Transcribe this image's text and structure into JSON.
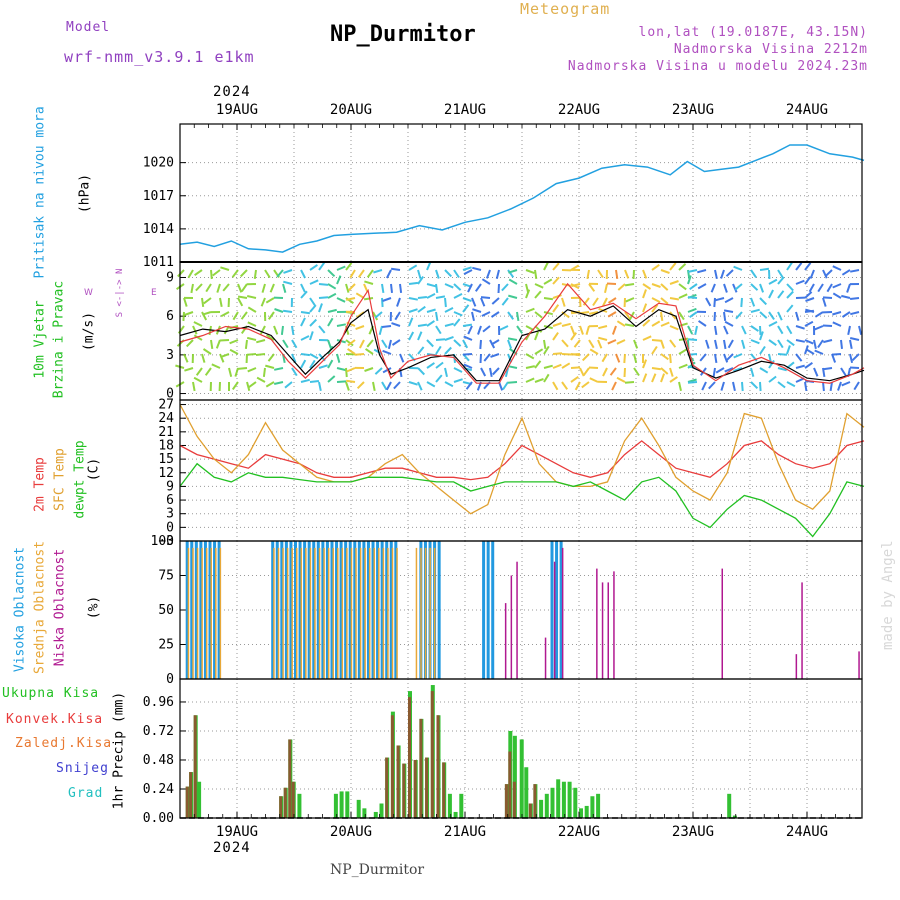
{
  "header": {
    "model_label": "Model",
    "model_name": "wrf-nmm_v3.9.1 e1km",
    "station": "NP_Durmitor",
    "meteogram": "Meteogram",
    "lonlat": "lon,lat (19.0187E, 43.15N)",
    "altitude": "Nadmorska Visina 2212m",
    "model_altitude": "Nadmorska Visina u modelu 2024.23m",
    "year_top": "2024",
    "year_bottom": "2024",
    "footer": "NP_Durmitor",
    "credit": "made by Angel"
  },
  "colors": {
    "pressure": "#22a0e0",
    "temp2m": "#e83c3c",
    "sfc": "#e0a030",
    "dewp": "#22c022",
    "high": "#2299e0",
    "mid": "#e8a838",
    "low": "#b01890",
    "precip_total": "#33c033",
    "precip_conv": "#b03030"
  },
  "dates": [
    "19AUG",
    "20AUG",
    "21AUG",
    "22AUG",
    "23AUG",
    "24AUG"
  ],
  "legends": {
    "pressure": [
      "Pritisak na nivou mora",
      "(hPa)"
    ],
    "wind": [
      "10m Vjetar",
      "Brzina i Pravac",
      "(m/s)"
    ],
    "compass": [
      "W",
      "<-|->",
      "E",
      "S",
      "^",
      "|",
      "v",
      "N"
    ],
    "temp": [
      "2m Temp",
      "SFC Temp",
      "dewpt Temp",
      "(C)"
    ],
    "cloud": [
      "Visoka Oblacnost",
      "Srednja Oblacnost",
      "Niska Oblacnost",
      "(%)"
    ],
    "precip": [
      "Ukupna Kisa",
      "Konvek.Kisa",
      "Zaledj.Kisa",
      "Snijeg",
      "Grad",
      "1hr Precip (mm)"
    ]
  },
  "chart_data": [
    {
      "type": "line",
      "ylabel": "(hPa)",
      "ylim": [
        1011,
        1023.5
      ],
      "yticks": [
        1011,
        1014,
        1017,
        1020
      ],
      "x_range_days": [
        -0.5,
        5.5
      ],
      "series": [
        {
          "name": "Pritisak na nivou mora",
          "x": [
            -0.5,
            -0.35,
            -0.2,
            -0.05,
            0.1,
            0.25,
            0.4,
            0.55,
            0.7,
            0.85,
            1.0,
            1.2,
            1.4,
            1.6,
            1.8,
            2.0,
            2.2,
            2.4,
            2.6,
            2.8,
            3.0,
            3.2,
            3.4,
            3.6,
            3.8,
            3.95,
            4.1,
            4.25,
            4.4,
            4.55,
            4.7,
            4.85,
            5.0,
            5.2,
            5.4,
            5.5
          ],
          "values": [
            1012.6,
            1012.8,
            1012.4,
            1012.9,
            1012.2,
            1012.1,
            1011.9,
            1012.6,
            1012.9,
            1013.4,
            1013.5,
            1013.6,
            1013.7,
            1014.3,
            1013.9,
            1014.6,
            1015.0,
            1015.8,
            1016.8,
            1018.1,
            1018.6,
            1019.5,
            1019.8,
            1019.6,
            1018.9,
            1020.1,
            1019.2,
            1019.4,
            1019.6,
            1020.2,
            1020.8,
            1021.6,
            1021.6,
            1020.8,
            1020.5,
            1020.2
          ]
        }
      ]
    },
    {
      "type": "line",
      "ylabel": "(m/s)",
      "ylim": [
        -0.5,
        10.2
      ],
      "yticks": [
        0,
        3,
        6,
        9
      ],
      "x_range_days": [
        -0.5,
        5.5
      ],
      "series": [
        {
          "name": "Brzina",
          "x": [
            -0.5,
            -0.3,
            -0.1,
            0.1,
            0.3,
            0.45,
            0.6,
            0.75,
            0.9,
            1.0,
            1.15,
            1.25,
            1.35,
            1.5,
            1.7,
            1.9,
            2.1,
            2.3,
            2.5,
            2.7,
            2.9,
            3.1,
            3.3,
            3.5,
            3.7,
            3.85,
            4.0,
            4.2,
            4.4,
            4.6,
            4.8,
            5.0,
            5.2,
            5.4,
            5.5
          ],
          "values": [
            4.5,
            5.0,
            4.8,
            5.2,
            4.5,
            3.0,
            1.5,
            2.8,
            4.0,
            5.5,
            6.5,
            3.0,
            1.5,
            2.0,
            2.8,
            3.0,
            1.0,
            1.0,
            4.5,
            5.0,
            6.5,
            6.0,
            6.8,
            5.2,
            6.5,
            6.0,
            2.0,
            1.2,
            1.8,
            2.5,
            2.2,
            1.2,
            1.0,
            1.5,
            1.8
          ]
        },
        {
          "name": "Udari",
          "x": [
            -0.5,
            -0.3,
            -0.1,
            0.1,
            0.3,
            0.45,
            0.6,
            0.75,
            0.9,
            1.0,
            1.15,
            1.25,
            1.35,
            1.5,
            1.7,
            1.9,
            2.1,
            2.3,
            2.5,
            2.7,
            2.9,
            3.1,
            3.3,
            3.5,
            3.7,
            3.85,
            4.0,
            4.2,
            4.4,
            4.6,
            4.8,
            5.0,
            5.2,
            5.4,
            5.5
          ],
          "values": [
            4.0,
            4.5,
            5.2,
            5.0,
            4.2,
            2.5,
            1.2,
            2.5,
            3.8,
            6.0,
            8.0,
            3.5,
            1.2,
            2.5,
            3.0,
            2.8,
            0.8,
            0.8,
            4.0,
            6.0,
            8.5,
            6.5,
            7.0,
            5.8,
            7.0,
            6.8,
            2.2,
            1.0,
            2.2,
            2.8,
            2.0,
            1.0,
            0.8,
            1.5,
            2.0
          ]
        }
      ]
    },
    {
      "type": "line",
      "ylabel": "(C)",
      "ylim": [
        -3,
        28
      ],
      "yticks": [
        -3,
        0,
        3,
        6,
        9,
        12,
        15,
        18,
        21,
        24,
        27
      ],
      "x_range_days": [
        -0.5,
        5.5
      ],
      "series": [
        {
          "name": "2m Temp",
          "x": [
            -0.5,
            -0.35,
            -0.2,
            -0.05,
            0.1,
            0.25,
            0.4,
            0.55,
            0.7,
            0.85,
            1.0,
            1.15,
            1.3,
            1.45,
            1.6,
            1.75,
            1.9,
            2.05,
            2.2,
            2.35,
            2.5,
            2.65,
            2.8,
            2.95,
            3.1,
            3.25,
            3.4,
            3.55,
            3.7,
            3.85,
            4.0,
            4.15,
            4.3,
            4.45,
            4.6,
            4.75,
            4.9,
            5.05,
            5.2,
            5.35,
            5.5
          ],
          "values": [
            18,
            16,
            15,
            14,
            13,
            16,
            15,
            14,
            12,
            11,
            11,
            12,
            13,
            13,
            12,
            11,
            11,
            10.5,
            11,
            14,
            18,
            16,
            14,
            12,
            11,
            12,
            16,
            19,
            16,
            13,
            12,
            11,
            14,
            18,
            19,
            16,
            14,
            13,
            14,
            18,
            19
          ]
        },
        {
          "name": "SFC Temp",
          "x": [
            -0.5,
            -0.35,
            -0.2,
            -0.05,
            0.1,
            0.25,
            0.4,
            0.55,
            0.7,
            0.85,
            1.0,
            1.15,
            1.3,
            1.45,
            1.6,
            1.75,
            1.9,
            2.05,
            2.2,
            2.35,
            2.5,
            2.65,
            2.8,
            2.95,
            3.1,
            3.25,
            3.4,
            3.55,
            3.7,
            3.85,
            4.0,
            4.15,
            4.3,
            4.45,
            4.6,
            4.75,
            4.9,
            5.05,
            5.2,
            5.35,
            5.5
          ],
          "values": [
            27,
            20,
            15,
            12,
            16,
            23,
            17,
            14,
            11,
            10,
            10,
            11,
            14,
            16,
            12,
            9,
            6,
            3,
            5,
            16,
            24,
            14,
            10,
            9,
            9,
            10,
            19,
            24,
            18,
            11,
            8,
            6,
            12,
            25,
            24,
            14,
            6,
            4,
            8,
            25,
            22
          ]
        },
        {
          "name": "dewpt Temp",
          "x": [
            -0.5,
            -0.35,
            -0.2,
            -0.05,
            0.1,
            0.25,
            0.4,
            0.55,
            0.7,
            0.85,
            1.0,
            1.15,
            1.3,
            1.45,
            1.6,
            1.75,
            1.9,
            2.05,
            2.2,
            2.35,
            2.5,
            2.65,
            2.8,
            2.95,
            3.1,
            3.25,
            3.4,
            3.55,
            3.7,
            3.85,
            4.0,
            4.15,
            4.3,
            4.45,
            4.6,
            4.75,
            4.9,
            5.05,
            5.2,
            5.35,
            5.5
          ],
          "values": [
            9,
            14,
            11,
            10,
            12,
            11,
            11,
            10.5,
            10,
            10,
            10,
            11,
            11,
            11,
            10.5,
            10,
            10,
            8,
            9,
            10,
            10,
            10,
            10,
            9,
            10,
            8,
            6,
            10,
            11,
            8,
            2,
            0,
            4,
            7,
            6,
            4,
            2,
            -2,
            3,
            10,
            9
          ]
        }
      ]
    },
    {
      "type": "bar",
      "ylabel": "(%)",
      "ylim": [
        0,
        100
      ],
      "yticks": [
        0,
        25,
        50,
        75,
        100
      ],
      "x_range_days": [
        -0.5,
        5.5
      ],
      "series": [
        {
          "name": "Visoka Oblacnost",
          "spans": [
            [
              -0.45,
              -0.15
            ],
            [
              0.3,
              1.4
            ],
            [
              1.6,
              1.78
            ],
            [
              2.15,
              2.25
            ],
            [
              2.75,
              2.85
            ]
          ],
          "value": 100
        },
        {
          "name": "Srednja Oblacnost",
          "spans": [
            [
              -0.45,
              -0.15
            ],
            [
              0.3,
              1.4
            ],
            [
              1.55,
              1.75
            ]
          ],
          "value": 95
        },
        {
          "name": "Niska Oblacnost",
          "x": [
            2.35,
            2.4,
            2.45,
            2.7,
            2.78,
            2.85,
            3.15,
            3.2,
            3.25,
            3.3,
            4.25,
            4.9,
            4.95,
            5.45
          ],
          "values": [
            55,
            75,
            85,
            30,
            85,
            95,
            80,
            70,
            70,
            78,
            80,
            18,
            70,
            20
          ]
        }
      ]
    },
    {
      "type": "bar",
      "ylabel": "1hr Precip (mm)",
      "ylim": [
        0,
        1.15
      ],
      "yticks": [
        0,
        0.24,
        0.48,
        0.72,
        0.96
      ],
      "x_range_days": [
        -0.5,
        5.5
      ],
      "series": [
        {
          "name": "Ukupna Kisa",
          "x": [
            -0.45,
            -0.42,
            -0.38,
            -0.35,
            0.37,
            0.41,
            0.45,
            0.48,
            0.53,
            0.85,
            0.9,
            0.95,
            1.05,
            1.1,
            1.2,
            1.25,
            1.3,
            1.35,
            1.4,
            1.45,
            1.5,
            1.55,
            1.6,
            1.65,
            1.7,
            1.75,
            1.8,
            1.85,
            1.9,
            1.95,
            2.35,
            2.38,
            2.42,
            2.48,
            2.52,
            2.56,
            2.6,
            2.65,
            2.7,
            2.75,
            2.8,
            2.85,
            2.9,
            2.95,
            3.0,
            3.05,
            3.1,
            3.15,
            4.3,
            4.35
          ],
          "values": [
            0.26,
            0.38,
            0.85,
            0.3,
            0.18,
            0.25,
            0.65,
            0.3,
            0.2,
            0.2,
            0.22,
            0.22,
            0.15,
            0.08,
            0.05,
            0.12,
            0.5,
            0.88,
            0.6,
            0.45,
            1.05,
            0.48,
            0.82,
            0.5,
            1.1,
            0.85,
            0.46,
            0.2,
            0.05,
            0.2,
            0.28,
            0.72,
            0.68,
            0.65,
            0.42,
            0.12,
            0.28,
            0.15,
            0.2,
            0.25,
            0.32,
            0.3,
            0.3,
            0.25,
            0.08,
            0.1,
            0.18,
            0.2,
            0.2,
            0.02
          ]
        },
        {
          "name": "Konvek.Kisa",
          "x": [
            -0.45,
            -0.42,
            -0.38,
            0.37,
            0.41,
            0.45,
            0.48,
            1.3,
            1.35,
            1.4,
            1.45,
            1.5,
            1.55,
            1.6,
            1.65,
            1.7,
            1.75,
            1.8,
            2.35,
            2.38,
            2.42,
            2.56,
            2.6
          ],
          "values": [
            0.26,
            0.38,
            0.85,
            0.18,
            0.25,
            0.65,
            0.3,
            0.5,
            0.85,
            0.6,
            0.45,
            1.0,
            0.48,
            0.82,
            0.5,
            1.05,
            0.85,
            0.46,
            0.28,
            0.55,
            0.3,
            0.12,
            0.28
          ]
        }
      ]
    }
  ]
}
